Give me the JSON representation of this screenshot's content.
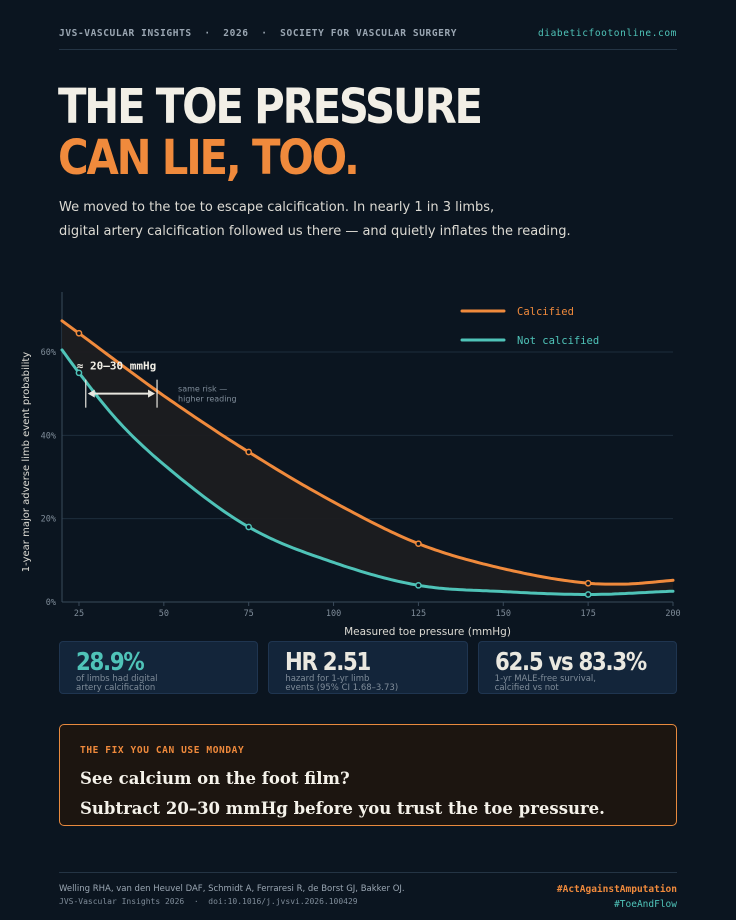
{
  "header": {
    "left": "JVS-VASCULAR INSIGHTS  ·  2026  ·  SOCIETY FOR VASCULAR SURGERY",
    "right": "diabeticfootonline.com"
  },
  "headline": {
    "line1": "THE TOE PRESSURE",
    "line2": "CAN LIE, TOO."
  },
  "subtitle": {
    "line1": "We moved to the toe to escape calcification. In nearly 1 in 3 limbs,",
    "line2": "digital artery calcification followed us there — and quietly inflates the reading."
  },
  "chart_data": {
    "type": "line",
    "xlabel": "Measured toe pressure  (mmHg)",
    "ylabel": "1-year major adverse limb event probability",
    "xlim": [
      20,
      200
    ],
    "ylim": [
      0,
      72
    ],
    "x_ticks": [
      25,
      50,
      75,
      100,
      125,
      150,
      175,
      200
    ],
    "y_ticks": [
      0,
      20,
      40,
      60
    ],
    "y_tick_labels": [
      "0%",
      "20%",
      "40%",
      "60%"
    ],
    "grid": "horizontal",
    "legend_position": "top-right",
    "series": [
      {
        "name": "Calcified",
        "color": "#f08a3c",
        "x": [
          20,
          25,
          50,
          75,
          100,
          125,
          150,
          175,
          185,
          200
        ],
        "y": [
          67.5,
          64.5,
          49.5,
          36,
          24,
          14,
          8,
          4.5,
          4.3,
          5.2
        ],
        "markers_x": [
          25,
          75,
          125,
          175
        ]
      },
      {
        "name": "Not calcified",
        "color": "#4fc3b8",
        "x": [
          20,
          25,
          37,
          50,
          75,
          100,
          125,
          150,
          175,
          200
        ],
        "y": [
          60.5,
          55,
          43,
          33,
          18,
          9.5,
          4,
          2.5,
          1.8,
          2.6
        ],
        "markers_x": [
          25,
          75,
          125,
          175
        ]
      }
    ],
    "annotations": {
      "shift_label": "≈ 20–30 mmHg",
      "shift_from": 27,
      "shift_to": 48,
      "shift_y": 50,
      "note_line1": "same risk —",
      "note_line2": "higher reading"
    }
  },
  "stats": [
    {
      "big": "28.9%",
      "small": "of limbs had digital\nartery calcification"
    },
    {
      "big": "HR 2.51",
      "small": "hazard for 1-yr limb\nevents  (95% CI 1.68–3.73)"
    },
    {
      "big": "62.5 vs 83.3%",
      "small": "1-yr MALE-free survival,\ncalcified vs not"
    }
  ],
  "fix": {
    "label": "THE FIX YOU CAN USE MONDAY",
    "line1": "See calcium on the foot film?",
    "line2": "Subtract 20–30 mmHg before you trust the toe pressure."
  },
  "footer": {
    "authors": "Welling RHA, van den Heuvel DAF, Schmidt A, Ferraresi R, de Borst GJ, Bakker OJ.",
    "citation": "JVS-Vascular Insights 2026  ·  doi:10.1016/j.jvsvi.2026.100429",
    "tag1": "#ActAgainstAmputation",
    "tag2": "#ToeAndFlow"
  }
}
